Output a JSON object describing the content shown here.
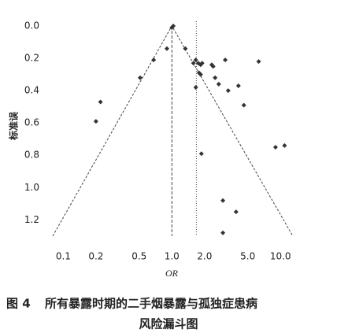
{
  "chart_data": {
    "type": "funnel",
    "y_label": "标准误",
    "x_label": "OR",
    "caption_label": "图 4",
    "caption_lines": [
      "所有暴露时期的二手烟暴露与孤独症患病",
      "风险漏斗图"
    ],
    "x": [
      1.0,
      1.03,
      0.9,
      0.68,
      0.51,
      0.22,
      0.2,
      1.33,
      1.58,
      1.66,
      1.75,
      1.84,
      1.9,
      1.66,
      1.78,
      1.84,
      2.33,
      2.4,
      2.5,
      2.7,
      3.1,
      3.3,
      4.1,
      4.6,
      6.3,
      1.87,
      9.0,
      10.9,
      2.95,
      3.9,
      2.95
    ],
    "values": [
      0.01,
      0.0,
      0.14,
      0.21,
      0.32,
      0.47,
      0.59,
      0.14,
      0.23,
      0.21,
      0.23,
      0.24,
      0.23,
      0.38,
      0.29,
      0.3,
      0.24,
      0.25,
      0.32,
      0.36,
      0.21,
      0.4,
      0.37,
      0.49,
      0.22,
      0.79,
      0.75,
      0.74,
      1.08,
      1.15,
      1.28
    ],
    "color": "#333333",
    "funnel": {
      "x": [
        0.08,
        1.0,
        13
      ],
      "y": [
        1.3,
        0,
        1.3
      ]
    },
    "null_line": 1.0,
    "pooled_or": 1.68,
    "log_x": true,
    "y_reversed": true,
    "xlim": [
      0.07,
      17
    ],
    "ylim": [
      0,
      1.32
    ],
    "xticks": [
      0.1,
      0.2,
      0.5,
      {
        "value": 1,
        "label": "1.0"
      },
      {
        "value": 2,
        "label": "2.0"
      },
      {
        "value": 5,
        "label": "5.0"
      },
      {
        "value": 10,
        "label": "10.0"
      }
    ],
    "yticks": [
      {
        "value": 0,
        "label": "0.0"
      },
      0.2,
      0.4,
      0.6,
      0.8,
      {
        "value": 1,
        "label": "1.0"
      },
      1.2
    ]
  }
}
